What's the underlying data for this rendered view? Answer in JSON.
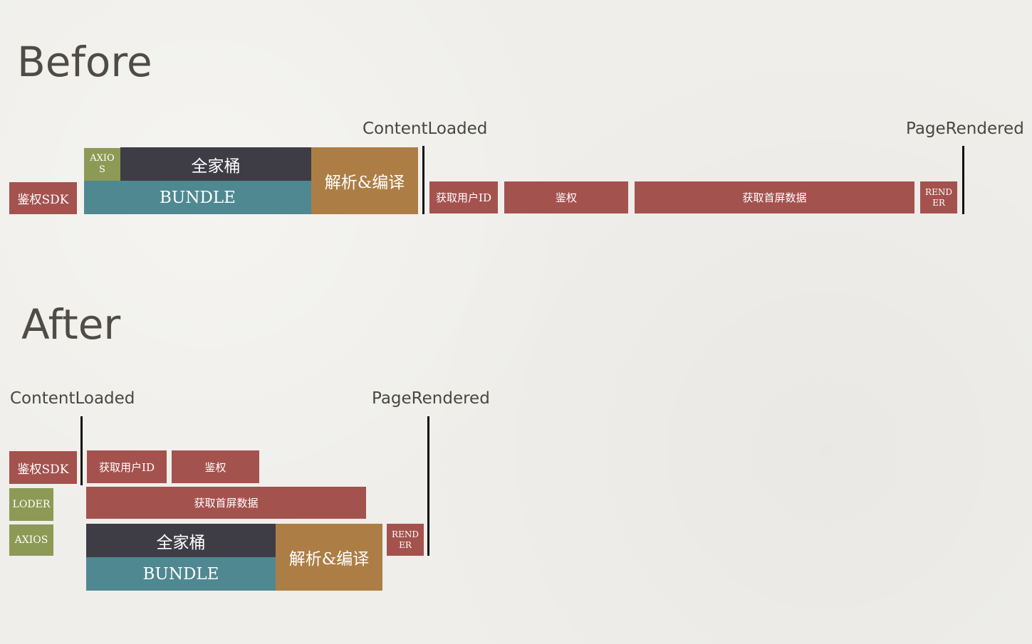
{
  "before": {
    "heading": "Before",
    "milestones": {
      "content_loaded": "ContentLoaded",
      "page_rendered": "PageRendered"
    },
    "blocks": {
      "auth_sdk": "鉴权SDK",
      "axios": "AXIOS",
      "family_bucket": "全家桶",
      "bundle": "BUNDLE",
      "parse_compile": "解析&编译",
      "fetch_user_id": "获取用户ID",
      "auth": "鉴权",
      "fetch_first_screen": "获取首屏数据",
      "render": "RENDER"
    }
  },
  "after": {
    "heading": "After",
    "milestones": {
      "content_loaded": "ContentLoaded",
      "page_rendered": "PageRendered"
    },
    "blocks": {
      "auth_sdk": "鉴权SDK",
      "loader": "LODER",
      "axios": "AXIOS",
      "fetch_user_id": "获取用户ID",
      "auth": "鉴权",
      "fetch_first_screen": "获取首屏数据",
      "family_bucket": "全家桶",
      "bundle": "BUNDLE",
      "parse_compile": "解析&编译",
      "render": "RENDER"
    }
  },
  "colors": {
    "network": "#a4524e",
    "library": "#8c9a55",
    "family_bucket": "#3e3d45",
    "bundle": "#4f8891",
    "parse_compile": "#ac7e45",
    "milestone_line": "#111111"
  }
}
